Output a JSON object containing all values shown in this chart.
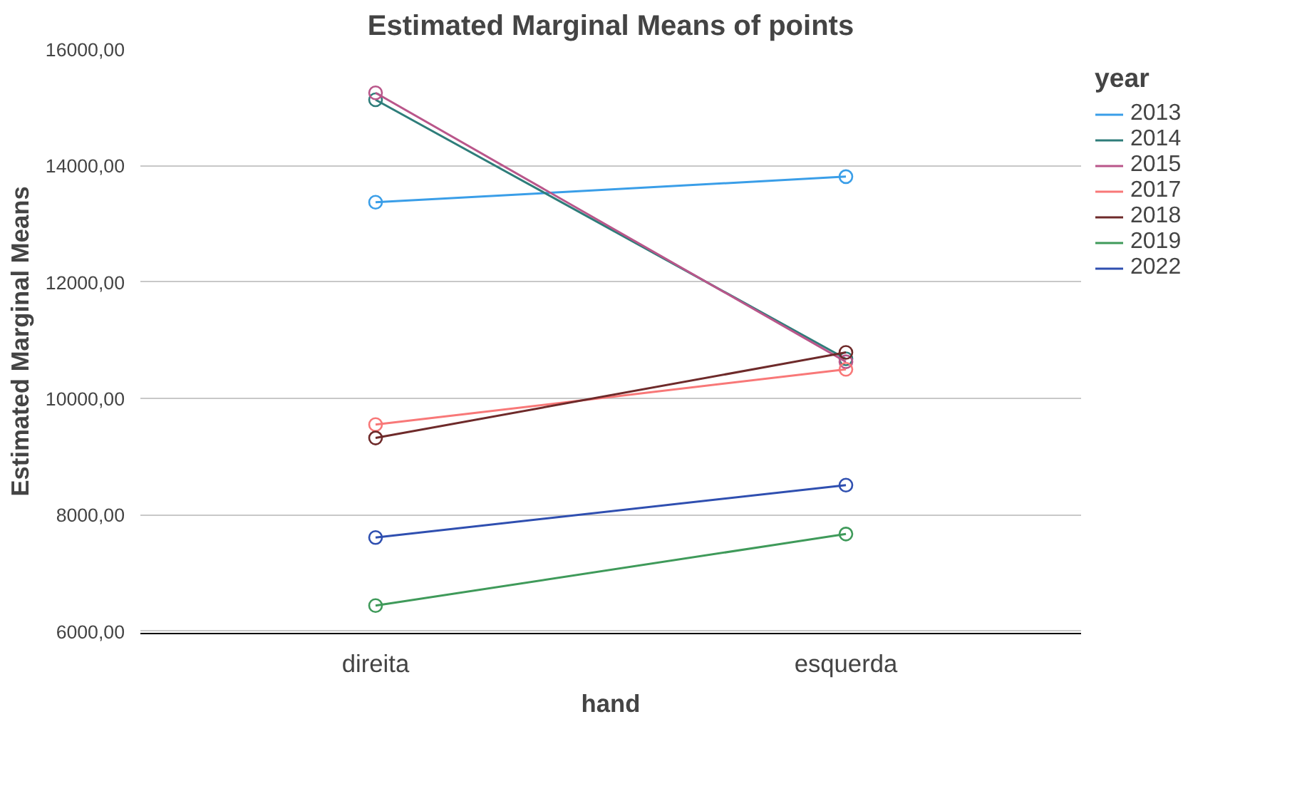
{
  "chart_data": {
    "type": "line",
    "title": "Estimated Marginal Means of points",
    "xlabel": "hand",
    "ylabel": "Estimated Marginal Means",
    "legend_title": "year",
    "categories": [
      "direita",
      "esquerda"
    ],
    "series": [
      {
        "name": "2013",
        "color": "#3a9ee8",
        "values": [
          13370,
          13810
        ]
      },
      {
        "name": "2014",
        "color": "#2e7d7a",
        "values": [
          15130,
          10680
        ]
      },
      {
        "name": "2015",
        "color": "#b9568a",
        "values": [
          15250,
          10630
        ]
      },
      {
        "name": "2017",
        "color": "#f87878",
        "values": [
          9550,
          10500
        ]
      },
      {
        "name": "2018",
        "color": "#6e2a2a",
        "values": [
          9320,
          10790
        ]
      },
      {
        "name": "2019",
        "color": "#3f9a5a",
        "values": [
          6440,
          7670
        ]
      },
      {
        "name": "2022",
        "color": "#2f4fb0",
        "values": [
          7610,
          8510
        ]
      }
    ],
    "ylim": [
      5960,
      16000
    ],
    "yticks": [
      {
        "value": 6000,
        "label": "6000,00"
      },
      {
        "value": 8000,
        "label": "8000,00"
      },
      {
        "value": 10000,
        "label": "10000,00"
      },
      {
        "value": 12000,
        "label": "12000,00"
      },
      {
        "value": 14000,
        "label": "14000,00"
      },
      {
        "value": 16000,
        "label": "16000,00"
      }
    ],
    "grid": "y",
    "legend": "right",
    "marker": "circle",
    "line_style": "solid"
  }
}
